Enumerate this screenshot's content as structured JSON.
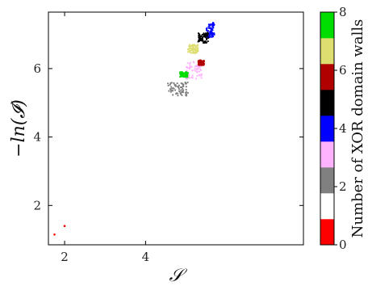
{
  "chart_data": {
    "type": "scatter",
    "xlabel": "𝒮",
    "ylabel": "−ln(𝓘)",
    "xlim": [
      1.6,
      7.9
    ],
    "ylim": [
      0.85,
      7.65
    ],
    "xticks": [
      2,
      4
    ],
    "yticks": [
      2,
      4,
      6
    ],
    "colorbar": {
      "label": "Number of XOR domain walls",
      "ticks": [
        0,
        2,
        4,
        6,
        8
      ],
      "range": [
        0,
        8
      ],
      "colors": [
        "#ff0000",
        "#ffffff",
        "#808080",
        "#ffb3ff",
        "#0000ff",
        "#000000",
        "#b00000",
        "#dede70",
        "#00dd00"
      ]
    },
    "series": [
      {
        "walls": 0,
        "color": "#ff0000",
        "points": [
          [
            1.75,
            1.15
          ],
          [
            2.0,
            1.4
          ]
        ]
      },
      {
        "walls": 2,
        "color": "#808080",
        "cluster": {
          "x": [
            4.55,
            5.05
          ],
          "y": [
            5.2,
            5.6
          ]
        }
      },
      {
        "walls": 3,
        "color": "#ffb3ff",
        "cluster": {
          "x": [
            5.0,
            5.4
          ],
          "y": [
            5.7,
            6.2
          ]
        }
      },
      {
        "walls": 4,
        "color": "#0000ff",
        "cluster": {
          "x": [
            5.5,
            5.7
          ],
          "y": [
            6.9,
            7.35
          ]
        }
      },
      {
        "walls": 5,
        "color": "#000000",
        "cluster": {
          "x": [
            5.3,
            5.55
          ],
          "y": [
            6.75,
            7.05
          ]
        }
      },
      {
        "walls": 6,
        "color": "#b00000",
        "cluster": {
          "x": [
            5.3,
            5.45
          ],
          "y": [
            6.1,
            6.25
          ]
        }
      },
      {
        "walls": 7,
        "color": "#dede70",
        "cluster": {
          "x": [
            5.05,
            5.3
          ],
          "y": [
            6.45,
            6.7
          ]
        }
      },
      {
        "walls": 8,
        "color": "#00dd00",
        "cluster": {
          "x": [
            4.85,
            5.05
          ],
          "y": [
            5.75,
            5.9
          ]
        }
      }
    ]
  }
}
